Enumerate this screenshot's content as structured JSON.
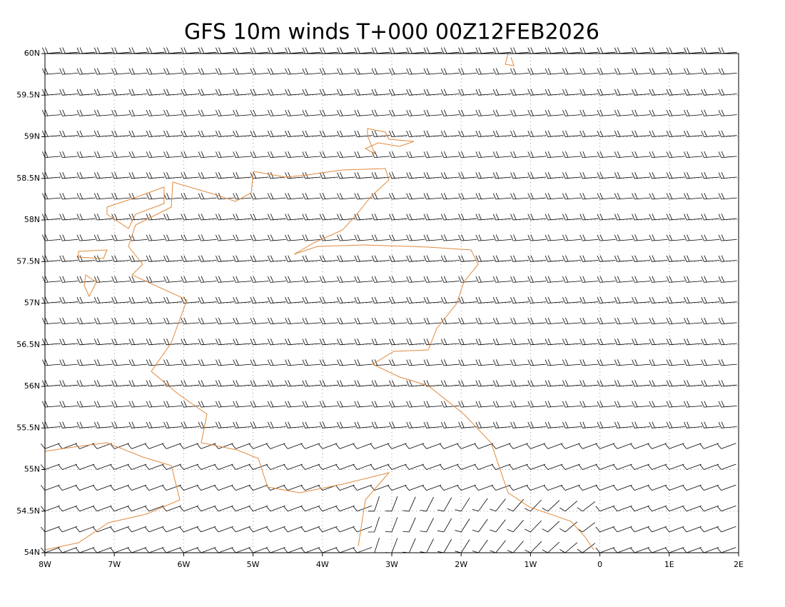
{
  "title": "GFS 10m winds T+000 00Z12FEB2026",
  "map": {
    "xlim": [
      -8,
      2
    ],
    "ylim": [
      54,
      60
    ],
    "xticks": [
      {
        "value": -8,
        "label": "8W"
      },
      {
        "value": -7,
        "label": "7W"
      },
      {
        "value": -6,
        "label": "6W"
      },
      {
        "value": -5,
        "label": "5W"
      },
      {
        "value": -4,
        "label": "4W"
      },
      {
        "value": -3,
        "label": "3W"
      },
      {
        "value": -2,
        "label": "2W"
      },
      {
        "value": -1,
        "label": "1W"
      },
      0,
      {
        "value": 1,
        "label": "1E"
      },
      {
        "value": 2,
        "label": "2E"
      }
    ],
    "yticks": [
      {
        "value": 54,
        "label": "54N"
      },
      {
        "value": 54.5,
        "label": "54.5N"
      },
      {
        "value": 55,
        "label": "55N"
      },
      {
        "value": 55.5,
        "label": "55.5N"
      },
      {
        "value": 56,
        "label": "56N"
      },
      {
        "value": 56.5,
        "label": "56.5N"
      },
      {
        "value": 57,
        "label": "57N"
      },
      {
        "value": 57.5,
        "label": "57.5N"
      },
      {
        "value": 58,
        "label": "58N"
      },
      {
        "value": 58.5,
        "label": "58.5N"
      },
      {
        "value": 59,
        "label": "59N"
      },
      {
        "value": 59.5,
        "label": "59.5N"
      },
      {
        "value": 60,
        "label": "60N"
      }
    ]
  }
}
